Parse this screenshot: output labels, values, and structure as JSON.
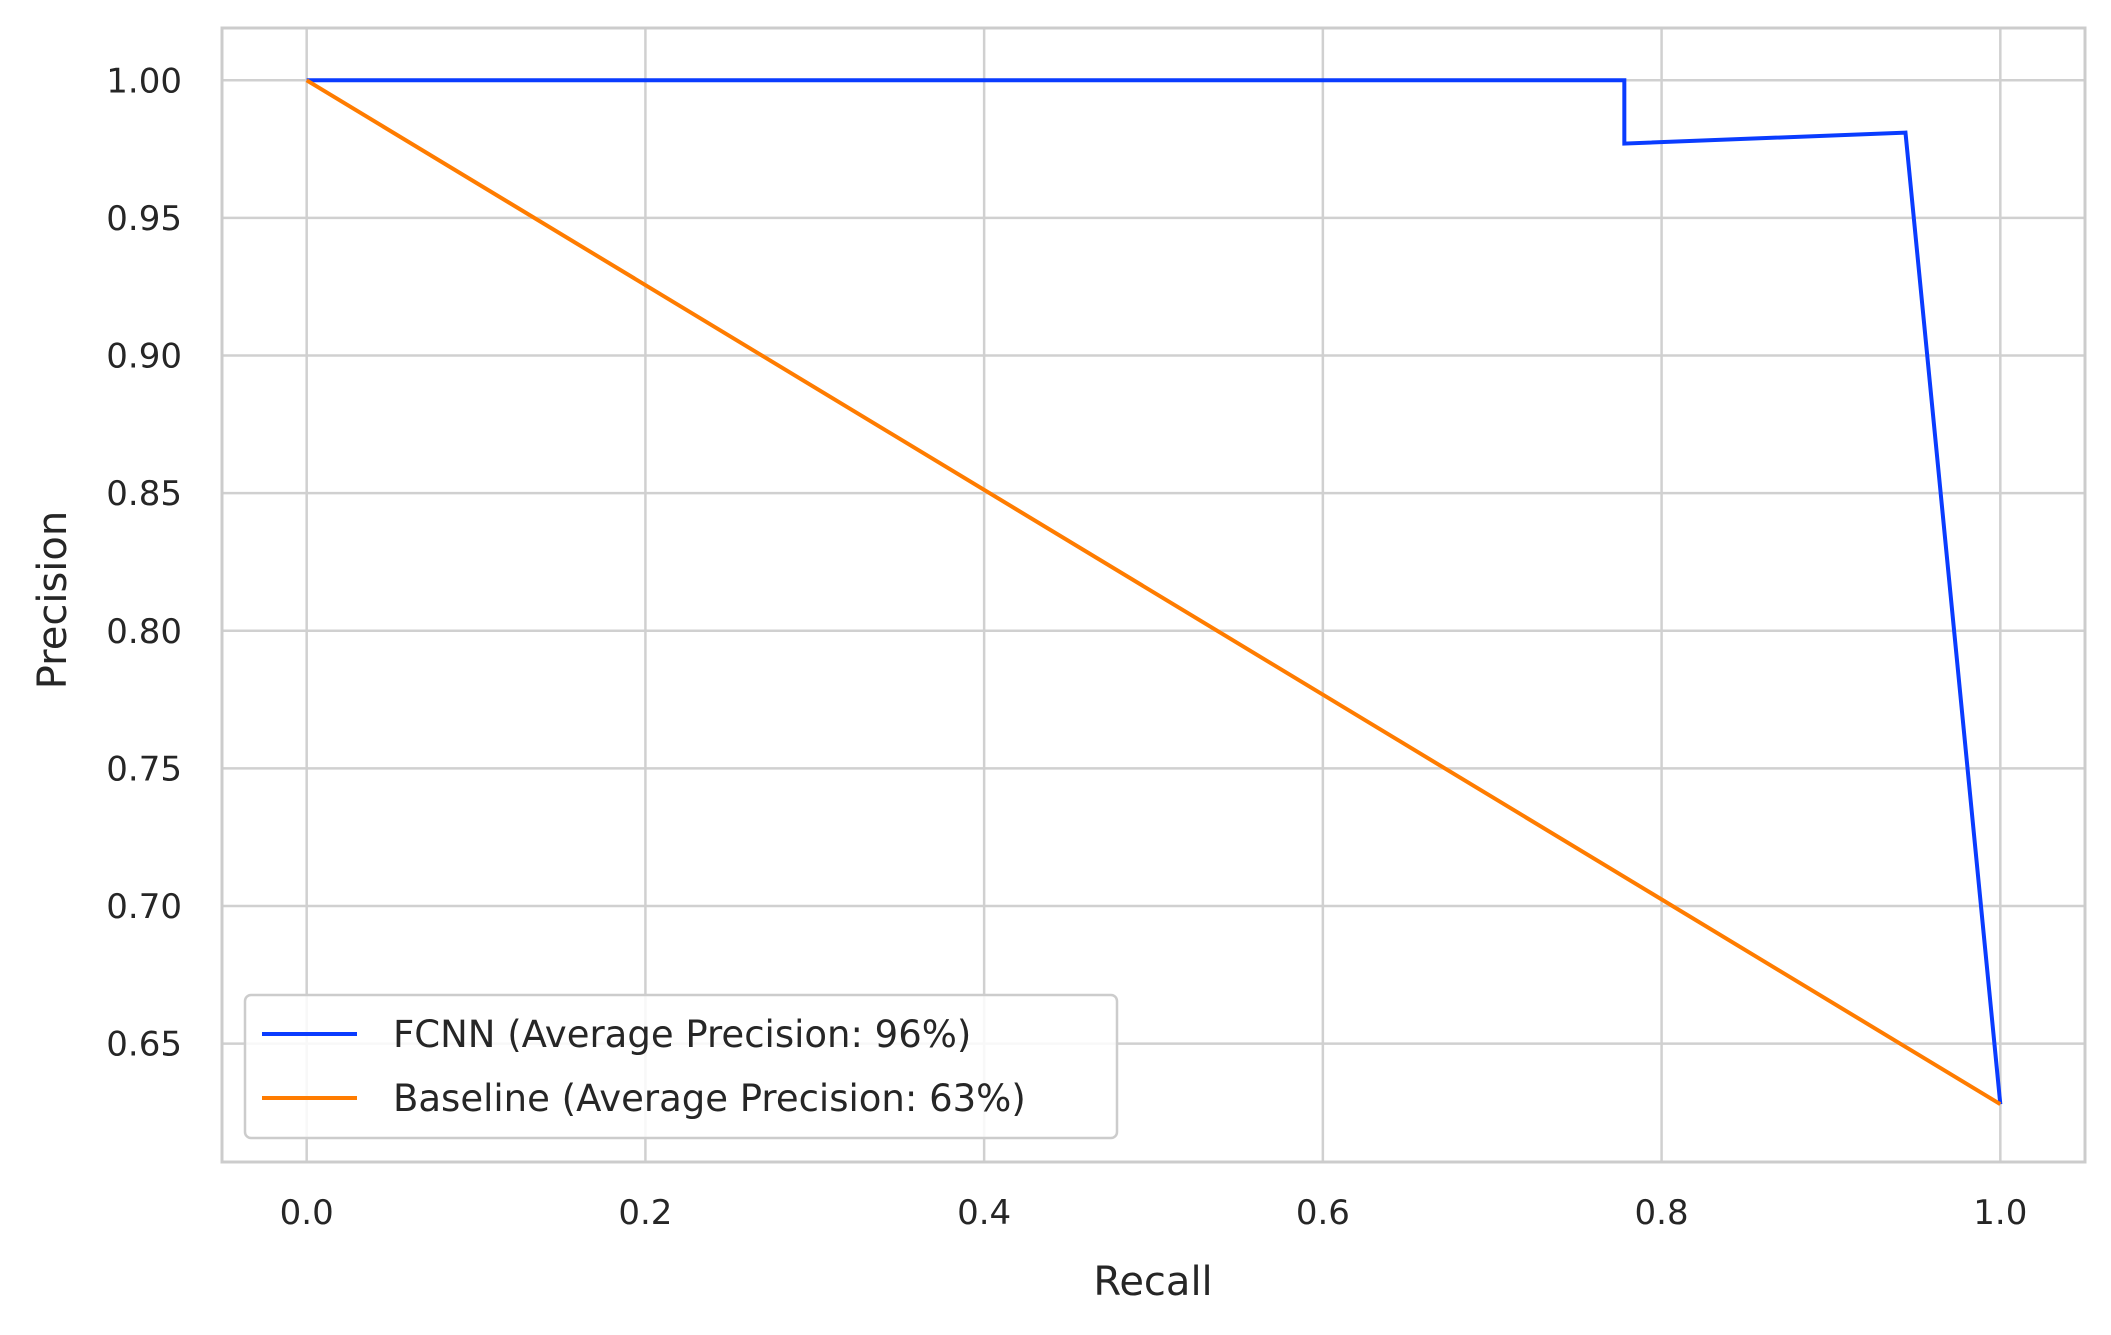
{
  "chart_data": {
    "type": "line",
    "title": "",
    "xlabel": "Recall",
    "ylabel": "Precision",
    "xlim": [
      -0.05,
      1.05
    ],
    "ylim": [
      0.607,
      1.019
    ],
    "xticks": [
      0.0,
      0.2,
      0.4,
      0.6,
      0.8,
      1.0
    ],
    "xtick_labels": [
      "0.0",
      "0.2",
      "0.4",
      "0.6",
      "0.8",
      "1.0"
    ],
    "yticks": [
      0.65,
      0.7,
      0.75,
      0.8,
      0.85,
      0.9,
      0.95,
      1.0
    ],
    "ytick_labels": [
      "0.65",
      "0.70",
      "0.75",
      "0.80",
      "0.85",
      "0.90",
      "0.95",
      "1.00"
    ],
    "grid": true,
    "legend_position": "lower-left",
    "series": [
      {
        "name": "FCNN (Average Precision: 96%)",
        "color": "#0a3cff",
        "x": [
          0.0,
          0.778,
          0.778,
          0.944,
          1.0
        ],
        "y": [
          1.0,
          1.0,
          0.977,
          0.981,
          0.628
        ]
      },
      {
        "name": "Baseline (Average Precision: 63%)",
        "color": "#ff7c00",
        "x": [
          0.0,
          1.0
        ],
        "y": [
          1.0,
          0.628
        ]
      }
    ]
  }
}
